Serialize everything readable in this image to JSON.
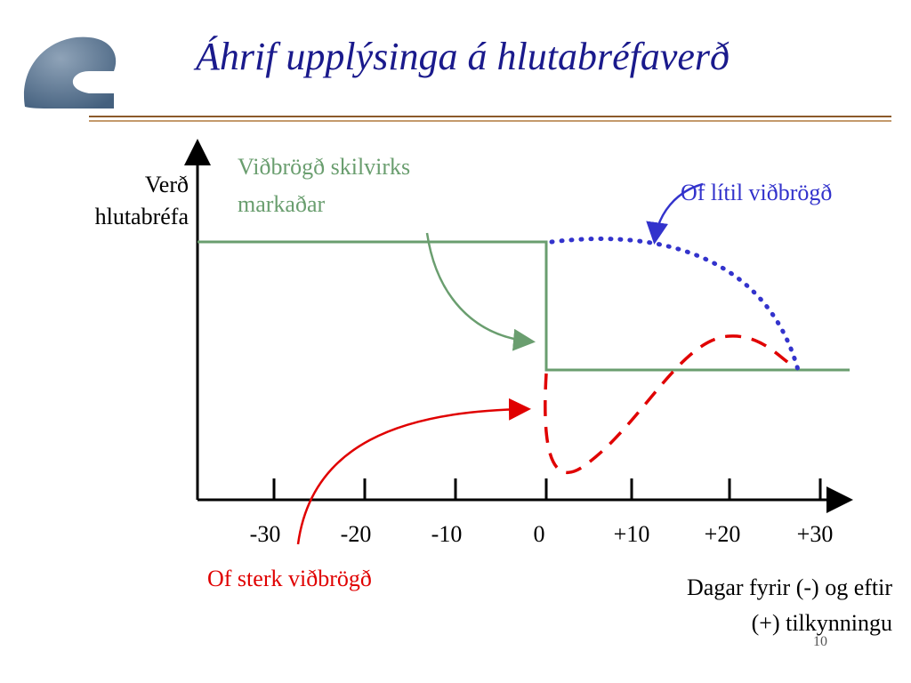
{
  "header": {
    "title": "Áhrif upplýsinga á hlutabréfaverð"
  },
  "y_axis_label": [
    "Verð",
    "hlutabréfa"
  ],
  "x_axis_label": [
    "Dagar fyrir (-) og eftir",
    "(+) tilkynningu"
  ],
  "x_tick_labels": [
    "-30",
    "-20",
    "-10",
    "0",
    "+10",
    "+20",
    "+30"
  ],
  "annotations": {
    "efficient": [
      "Viðbrögð skilvirks",
      "markaðar"
    ],
    "under": "Of lítil viðbrögð",
    "over": "Of sterk viðbrögð"
  },
  "page_number": "10"
}
